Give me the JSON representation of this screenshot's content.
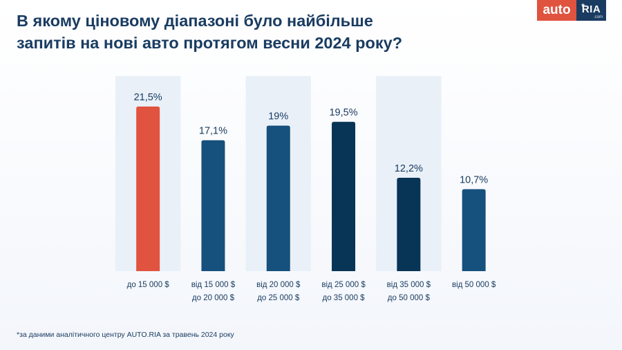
{
  "title_lines": [
    "В якому ціновому діапазоні було найбільше",
    "запитів на нові авто протягом весни 2024 року?"
  ],
  "logo": {
    "auto": "auto",
    "ria": "RIA",
    "com": ".com"
  },
  "footnote": "*за даними аналітичного центру AUTO.RIA за травень 2024 року",
  "colors": {
    "accent": "#e0533f",
    "blue": "#16507d",
    "navy": "#083456",
    "band": "#e9f0f8",
    "text": "#1a3c61"
  },
  "chart_data": {
    "type": "bar",
    "categories": [
      [
        "до 15 000 $"
      ],
      [
        "від 15 000 $",
        "до 20 000 $"
      ],
      [
        "від 20 000 $",
        "до 25 000 $"
      ],
      [
        "від 25 000 $",
        "до 35 000 $"
      ],
      [
        "від 35 000 $",
        "до 50 000 $"
      ],
      [
        "від 50 000 $"
      ]
    ],
    "values": [
      21.5,
      17.1,
      19,
      19.5,
      12.2,
      10.7
    ],
    "value_labels": [
      "21,5%",
      "17,1%",
      "19%",
      "19,5%",
      "12,2%",
      "10,7%"
    ],
    "bar_colors": [
      "#e0533f",
      "#16507d",
      "#16507d",
      "#083456",
      "#083456",
      "#16507d"
    ],
    "unit": "%",
    "ylim": [
      0,
      21.5
    ],
    "grid": false,
    "legend": "none"
  }
}
